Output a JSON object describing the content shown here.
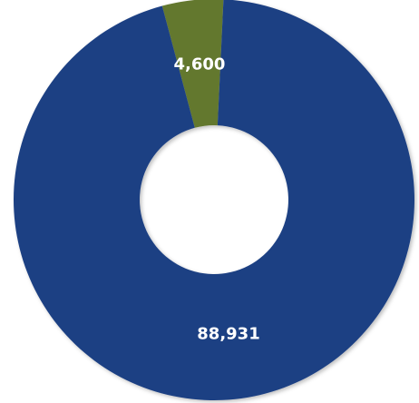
{
  "chart_data": {
    "type": "pie",
    "variant": "donut",
    "series": [
      {
        "values": [
          4600,
          88931
        ],
        "colors": [
          "#63782e",
          "#1f4183"
        ],
        "data_labels": [
          "4,600",
          "88,931"
        ]
      }
    ],
    "legend": "none"
  },
  "colors": {
    "background": "#ffffff",
    "label_text": "#ffffff"
  }
}
